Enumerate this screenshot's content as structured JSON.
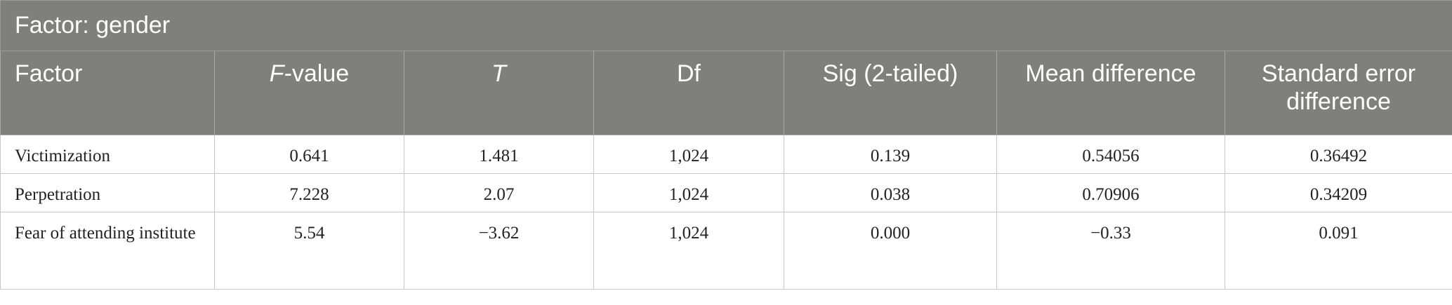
{
  "table": {
    "title": "Factor: gender",
    "headers": [
      "Factor",
      [
        "F",
        "-value"
      ],
      "T",
      "Df",
      "Sig (2-tailed)",
      "Mean difference",
      "Standard error difference"
    ],
    "rows": [
      [
        "Victimization",
        "0.641",
        "1.481",
        "1,024",
        "0.139",
        "0.54056",
        "0.36492"
      ],
      [
        "Perpetration",
        "7.228",
        "2.07",
        "1,024",
        "0.038",
        "0.70906",
        "0.34209"
      ],
      [
        "Fear of attending institute",
        "5.54",
        "−3.62",
        "1,024",
        "0.000",
        "−0.33",
        "0.091"
      ]
    ]
  }
}
